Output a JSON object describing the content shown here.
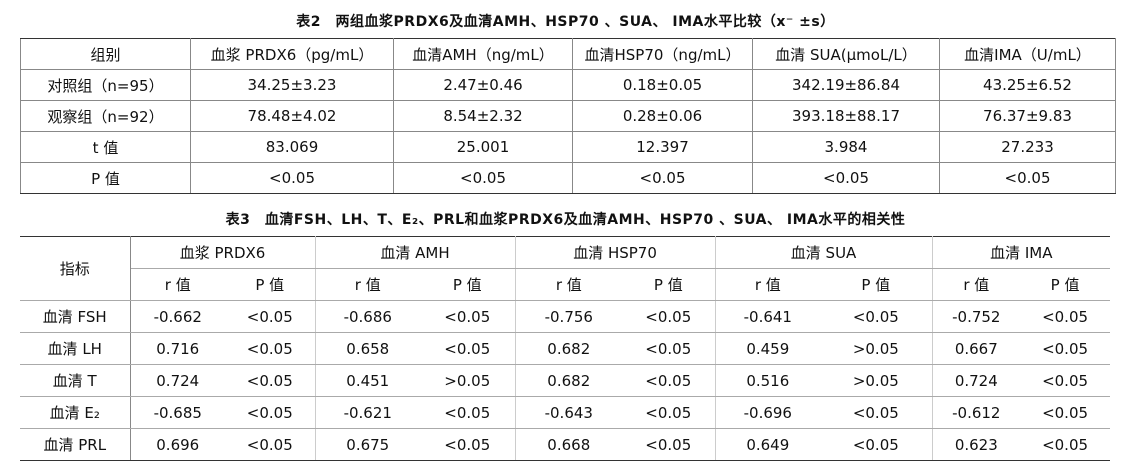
{
  "table2": {
    "title": "表2　两组血浆PRDX6及血清AMH、HSP70 、SUA、 IMA水平比较（x⁻ ±s）",
    "header": [
      "组别",
      "血浆 PRDX6（pg/mL）",
      "血清AMH（ng/mL）",
      "血清HSP70（ng/mL）",
      "血清 SUA(μmoL/L）",
      "血清IMA（U/mL）"
    ],
    "rows": [
      [
        "对照组（n=95）",
        "34.25±3.23",
        "2.47±0.46",
        "0.18±0.05",
        "342.19±86.84",
        "43.25±6.52"
      ],
      [
        "观察组（n=92）",
        "78.48±4.02",
        "8.54±2.32",
        "0.28±0.06",
        "393.18±88.17",
        "76.37±9.83"
      ],
      [
        "t 值",
        "83.069",
        "25.001",
        "12.397",
        "3.984",
        "27.233"
      ],
      [
        "P 值",
        "<0.05",
        "<0.05",
        "<0.05",
        "<0.05",
        "<0.05"
      ]
    ]
  },
  "table3": {
    "title": "表3　血清FSH、LH、T、E₂、PRL和血浆PRDX6及血清AMH、HSP70 、SUA、 IMA水平的相关性",
    "header": [
      "指标",
      "血浆 PRDX6",
      "血清 AMH",
      "血清 HSP70",
      "血清 SUA",
      "血清 IMA"
    ],
    "subheader": [
      "r 值",
      "P 值",
      "r 值",
      "P 值",
      "r 值",
      "P 值",
      "r 值",
      "P 值",
      "r 值",
      "P 值"
    ],
    "rows": [
      [
        "血清 FSH",
        "-0.662",
        "<0.05",
        "-0.686",
        "<0.05",
        "-0.756",
        "<0.05",
        "-0.641",
        "<0.05",
        "-0.752",
        "<0.05"
      ],
      [
        "血清 LH",
        "0.716",
        "<0.05",
        "0.658",
        "<0.05",
        "0.682",
        "<0.05",
        "0.459",
        ">0.05",
        "0.667",
        "<0.05"
      ],
      [
        "血清 T",
        "0.724",
        "<0.05",
        "0.451",
        ">0.05",
        "0.682",
        "<0.05",
        "0.516",
        ">0.05",
        "0.724",
        "<0.05"
      ],
      [
        "血清 E₂",
        "-0.685",
        "<0.05",
        "-0.621",
        "<0.05",
        "-0.643",
        "<0.05",
        "-0.696",
        "<0.05",
        "-0.612",
        "<0.05"
      ],
      [
        "血清 PRL",
        "0.696",
        "<0.05",
        "0.675",
        "<0.05",
        "0.668",
        "<0.05",
        "0.649",
        "<0.05",
        "0.623",
        "<0.05"
      ]
    ]
  }
}
